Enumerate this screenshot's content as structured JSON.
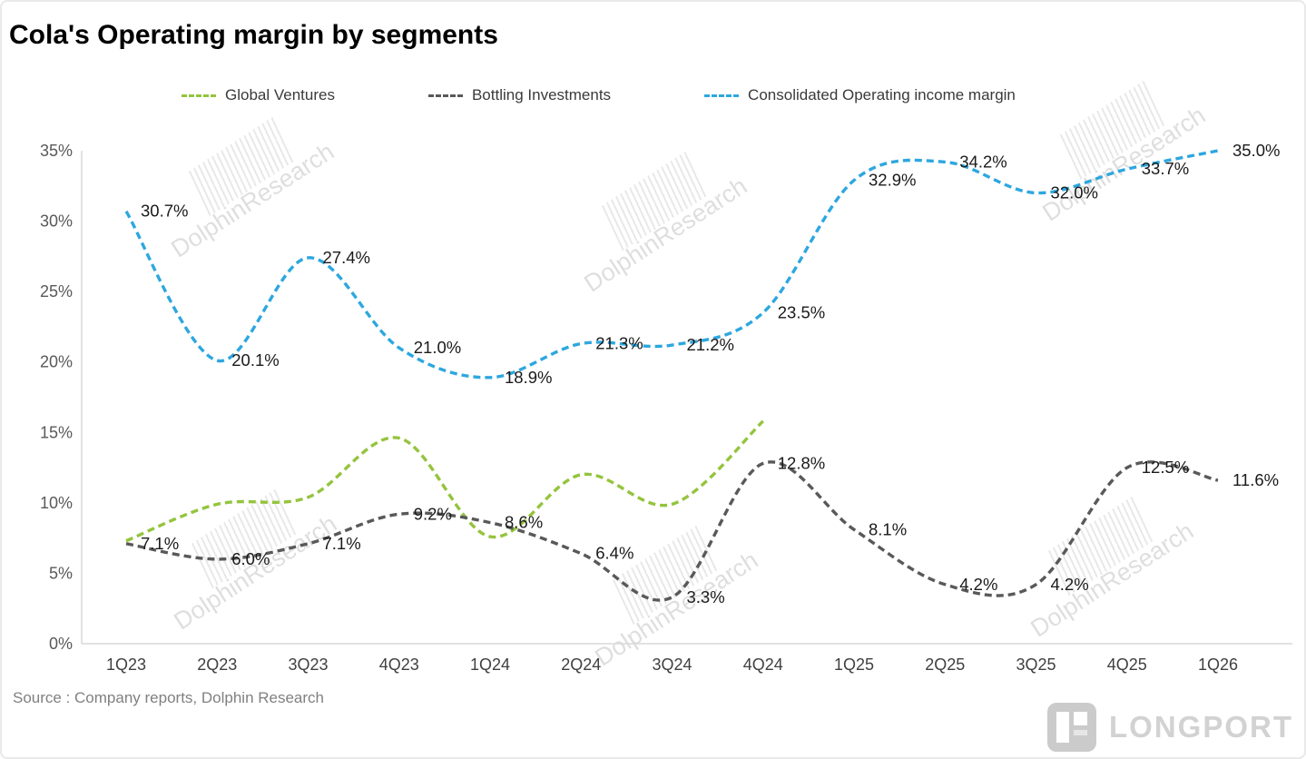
{
  "title": "Cola's Operating margin by segments",
  "source": "Source : Company reports, Dolphin Research",
  "watermark": "DolphinResearch",
  "logo_text": "LONGPORT",
  "colors": {
    "global_ventures": "#94c43d",
    "bottling_investments": "#595959",
    "consolidated": "#2da7df",
    "axis": "#d9d9d9",
    "label": "#1a1a1a"
  },
  "legend": {
    "items": [
      {
        "label": "Global Ventures",
        "color": "#94c43d"
      },
      {
        "label": "Bottling Investments",
        "color": "#595959"
      },
      {
        "label": "Consolidated Operating income margin",
        "color": "#2da7df"
      }
    ]
  },
  "chart_data": {
    "type": "line",
    "title": "Cola's Operating margin by segments",
    "categories": [
      "1Q23",
      "2Q23",
      "3Q23",
      "4Q23",
      "1Q24",
      "2Q24",
      "3Q24",
      "4Q24",
      "1Q25",
      "2Q25",
      "3Q25",
      "4Q25",
      "1Q26"
    ],
    "series": [
      {
        "name": "Global Ventures",
        "color": "#94c43d",
        "style": "dashed",
        "show_labels": false,
        "values": [
          7.3,
          9.9,
          10.4,
          14.6,
          7.6,
          12.0,
          9.9,
          15.8,
          null,
          null,
          null,
          null,
          null
        ]
      },
      {
        "name": "Bottling Investments",
        "color": "#595959",
        "style": "dashed",
        "show_labels": true,
        "values": [
          7.1,
          6.0,
          7.1,
          9.2,
          8.6,
          6.4,
          3.3,
          12.8,
          8.1,
          4.2,
          4.2,
          12.5,
          11.6
        ]
      },
      {
        "name": "Consolidated Operating income margin",
        "color": "#2da7df",
        "style": "dashed",
        "show_labels": true,
        "values": [
          30.7,
          20.1,
          27.4,
          21.0,
          18.9,
          21.3,
          21.2,
          23.5,
          32.9,
          34.2,
          32.0,
          33.7,
          35.0
        ]
      }
    ],
    "xlabel": "",
    "ylabel": "",
    "ylim": [
      0,
      35
    ],
    "yticks": [
      0,
      5,
      10,
      15,
      20,
      25,
      30,
      35
    ],
    "ytick_labels": [
      "0%",
      "5%",
      "10%",
      "15%",
      "20%",
      "25%",
      "30%",
      "35%"
    ],
    "grid": false,
    "legend_position": "top"
  }
}
